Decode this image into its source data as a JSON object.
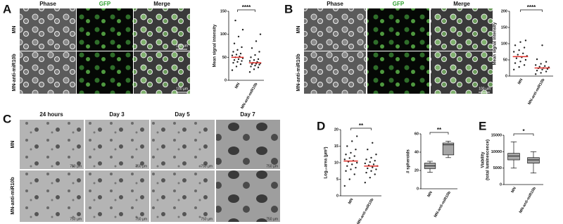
{
  "panel_a": {
    "label": "A",
    "columns": [
      "Phase",
      "GFP",
      "Merge"
    ],
    "rows": [
      "MN",
      "MN-anti-miR10b"
    ],
    "scale_bars": [
      "100 µm",
      "100 µm"
    ],
    "chart": {
      "type": "dot",
      "ylabel": "Mean signal intensity",
      "categories": [
        "MN",
        "MN-anti-miR10b"
      ],
      "significance": "****",
      "ylim": [
        0,
        150
      ],
      "yticks": [
        0,
        50,
        100,
        150
      ],
      "point_color": "#222222",
      "mean_color": "#e0302a",
      "means": [
        50,
        38
      ],
      "values": [
        [
          22,
          30,
          35,
          38,
          40,
          42,
          44,
          46,
          48,
          50,
          52,
          54,
          56,
          58,
          62,
          66,
          72,
          80,
          95,
          110,
          130
        ],
        [
          18,
          24,
          28,
          30,
          32,
          34,
          35,
          36,
          37,
          38,
          40,
          42,
          44,
          46,
          50,
          55,
          62,
          70,
          85,
          100
        ]
      ]
    }
  },
  "panel_b": {
    "label": "B",
    "columns": [
      "Phase",
      "GFP",
      "Merge"
    ],
    "rows": [
      "MN",
      "MN-anti-miR10b"
    ],
    "scale_bars": [
      "100 µm"
    ],
    "chart": {
      "type": "dot",
      "ylabel": "Mean signal intensity",
      "categories": [
        "MN",
        "MN-anti-miR10b"
      ],
      "significance": "****",
      "ylim": [
        0,
        200
      ],
      "yticks": [
        0,
        50,
        100,
        150,
        200
      ],
      "point_color": "#222222",
      "mean_color": "#e0302a",
      "means": [
        60,
        25
      ],
      "values": [
        [
          20,
          28,
          34,
          40,
          45,
          50,
          55,
          58,
          62,
          66,
          70,
          75,
          80,
          88,
          95,
          105,
          110
        ],
        [
          6,
          10,
          14,
          17,
          20,
          22,
          24,
          25,
          27,
          29,
          31,
          34,
          38,
          44,
          52,
          95
        ]
      ]
    }
  },
  "panel_c": {
    "label": "C",
    "columns": [
      "24 hours",
      "Day 3",
      "Day 5",
      "Day 7"
    ],
    "rows": [
      "MN",
      "MN-anti-miR10b"
    ],
    "scale_bars": [
      "750 µm",
      "750 µm",
      "750 µm",
      "750 µm",
      "750 µm",
      "750 µm",
      "750 µm",
      "750 µm"
    ]
  },
  "panel_d": {
    "label": "D",
    "charts": [
      {
        "type": "dot",
        "ylabel": "Log₁₀area (µm²)",
        "categories": [
          "MN",
          "MN-anti-miR10b"
        ],
        "significance": "**",
        "ylim": [
          0,
          20
        ],
        "yticks": [
          0,
          5,
          10,
          15,
          20
        ],
        "point_color": "#222222",
        "mean_color": "#e0302a",
        "means": [
          10.5,
          9
        ],
        "values": [
          [
            3,
            5,
            6.5,
            7.5,
            8,
            8.5,
            9,
            9.5,
            10,
            10.3,
            10.6,
            11,
            11.4,
            12,
            12.5,
            13,
            14,
            15,
            16.5,
            18
          ],
          [
            4,
            5.5,
            6.5,
            7,
            7.5,
            8,
            8.3,
            8.6,
            9,
            9.2,
            9.5,
            9.8,
            10.2,
            10.6,
            11,
            11.5,
            12.5,
            14,
            16
          ]
        ]
      },
      {
        "type": "box",
        "ylabel": "# spheroids",
        "categories": [
          "MN",
          "MN-anti-miR10b"
        ],
        "significance": "**",
        "ylim": [
          0,
          60
        ],
        "yticks": [
          0,
          20,
          40,
          60
        ],
        "box_color": "#a6a6a6",
        "boxes": [
          {
            "min": 18,
            "q1": 22,
            "median": 25,
            "q3": 28,
            "max": 30
          },
          {
            "min": 34,
            "q1": 37,
            "median": 48,
            "q3": 50,
            "max": 52
          }
        ]
      }
    ]
  },
  "panel_e": {
    "label": "E",
    "chart": {
      "type": "box",
      "ylabel": [
        "Viability",
        "(total luminescence)"
      ],
      "categories": [
        "MN",
        "MN-anti-miR10b"
      ],
      "significance": "*",
      "ylim": [
        0,
        15000
      ],
      "yticks": [
        0,
        5000,
        10000,
        15000
      ],
      "box_color": "#a6a6a6",
      "boxes": [
        {
          "min": 5000,
          "q1": 7500,
          "median": 8700,
          "q3": 9500,
          "max": 13000
        },
        {
          "min": 3500,
          "q1": 6500,
          "median": 7500,
          "q3": 8200,
          "max": 10000
        }
      ]
    }
  }
}
